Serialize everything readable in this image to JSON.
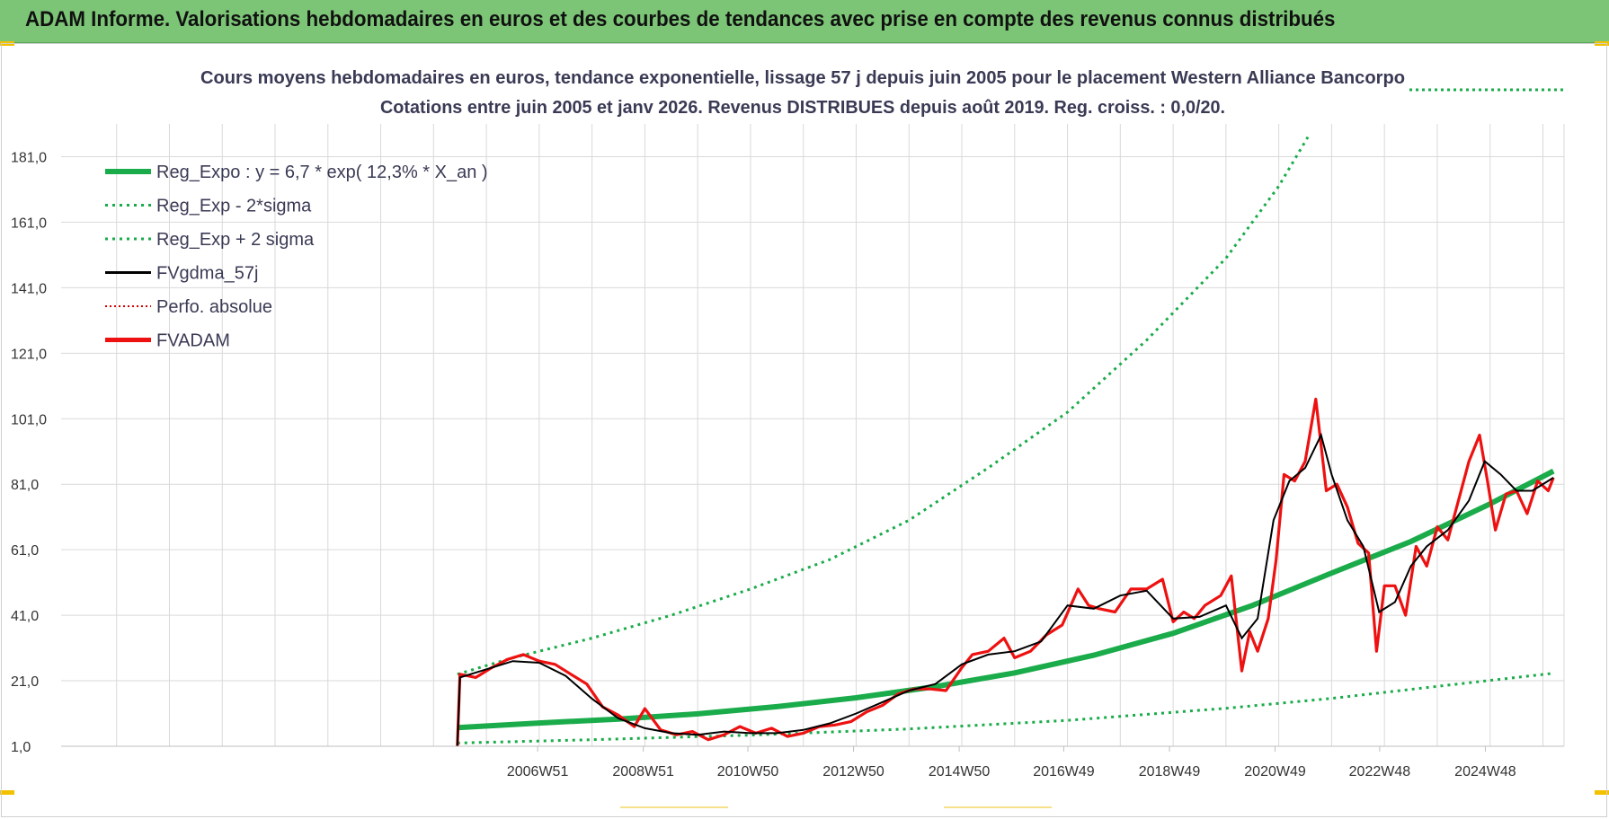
{
  "header": {
    "title": "ADAM Informe. Valorisations hebdomadaires en euros et des courbes de tendances avec prise en compte des revenus connus distribués"
  },
  "colors": {
    "header_bg": "#7cc576",
    "reg_expo": "#1aab4a",
    "sigma_bands": "#1aab4a",
    "fvgdma": "#000000",
    "perfo": "#d40000",
    "fvadam": "#ee1111",
    "grid": "#d9d9d9",
    "text": "#3a3a55"
  },
  "chart_data": {
    "type": "line",
    "title_line1": "Cours moyens hebdomadaires en euros, tendance exponentielle, lissage 57 j depuis juin 2005 pour le placement Western Alliance Bancorpo",
    "title_line2": "Cotations entre juin 2005 et janv 2026.  Revenus DISTRIBUES depuis août 2019.  Reg. croiss. : 0,0/20.",
    "ylim": [
      1,
      191
    ],
    "xlim": [
      1997.95,
      2026.4
    ],
    "y_ticks": [
      "1,0",
      "21,0",
      "41,0",
      "61,0",
      "81,0",
      "101,0",
      "121,0",
      "141,0",
      "161,0",
      "181,0"
    ],
    "x_ticks": [
      {
        "label": "2006W51",
        "x": 2006.97
      },
      {
        "label": "2008W51",
        "x": 2008.97
      },
      {
        "label": "2010W50",
        "x": 2010.95
      },
      {
        "label": "2012W50",
        "x": 2012.95
      },
      {
        "label": "2014W50",
        "x": 2014.95
      },
      {
        "label": "2016W49",
        "x": 2016.93
      },
      {
        "label": "2018W49",
        "x": 2018.93
      },
      {
        "label": "2020W49",
        "x": 2020.93
      },
      {
        "label": "2022W48",
        "x": 2022.91
      },
      {
        "label": "2024W48",
        "x": 2024.91
      }
    ],
    "legend": [
      {
        "label": "Reg_Expo : y = 6,7 * exp( 12,3% *  X_an )",
        "style": "thick"
      },
      {
        "label": "Reg_Exp - 2*sigma",
        "style": "dotted-green"
      },
      {
        "label": "Reg_Exp + 2 sigma",
        "style": "dotted-green"
      },
      {
        "label": "FVgdma_57j",
        "style": "black"
      },
      {
        "label": "Perfo. absolue",
        "style": "dotted-red"
      },
      {
        "label": "FVADAM",
        "style": "red"
      }
    ],
    "series": [
      {
        "name": "Reg_Expo",
        "x": [
          2005.45,
          2007,
          2008.5,
          2010,
          2011.5,
          2013,
          2014.5,
          2016,
          2017.5,
          2019,
          2020.5,
          2022,
          2023.5,
          2025,
          2026.2
        ],
        "values": [
          6.7,
          8.1,
          9.3,
          10.9,
          13.1,
          15.8,
          19.2,
          23.4,
          28.8,
          35.5,
          44.0,
          53.9,
          63.5,
          75.0,
          85.0
        ]
      },
      {
        "name": "Reg_Exp - 2*sigma",
        "x": [
          2005.45,
          2008,
          2011,
          2014,
          2017,
          2020,
          2022,
          2024,
          2026.2
        ],
        "values": [
          2.0,
          3.0,
          4.4,
          6.3,
          8.9,
          12.6,
          15.6,
          19.3,
          23.3
        ]
      },
      {
        "name": "Reg_Exp + 2 sigma",
        "x": [
          2005.45,
          2006.5,
          2008,
          2009.5,
          2011,
          2012.5,
          2014,
          2015.5,
          2017,
          2018.5,
          2020,
          2021,
          2021.55
        ],
        "values": [
          23.0,
          28.0,
          34.0,
          41.0,
          49.0,
          58.0,
          70.0,
          86.0,
          103.0,
          125.0,
          150.0,
          172.0,
          187.0
        ]
      },
      {
        "name": "FVgdma_57j",
        "x": [
          2005.45,
          2005.5,
          2006,
          2006.5,
          2007,
          2007.5,
          2008,
          2008.5,
          2009,
          2009.5,
          2010,
          2010.5,
          2011,
          2011.5,
          2012,
          2012.5,
          2013,
          2013.5,
          2014,
          2014.5,
          2015,
          2015.5,
          2016,
          2016.5,
          2017,
          2017.5,
          2018,
          2018.5,
          2019,
          2019.5,
          2020,
          2020.3,
          2020.6,
          2020.9,
          2021.2,
          2021.5,
          2021.8,
          2022,
          2022.3,
          2022.6,
          2022.9,
          2023.2,
          2023.5,
          2023.8,
          2024.2,
          2024.6,
          2024.9,
          2025.2,
          2025.5,
          2025.8,
          2026.2
        ],
        "values": [
          1.0,
          22.0,
          24.5,
          27.0,
          26.5,
          22.5,
          15.5,
          9.5,
          6.5,
          5.0,
          4.5,
          5.5,
          5.0,
          5.0,
          6.0,
          8.0,
          11.0,
          14.5,
          18.0,
          20.0,
          26.0,
          29.0,
          30.0,
          33.0,
          44.0,
          43.0,
          47.0,
          48.5,
          40.0,
          40.5,
          44.0,
          34.0,
          40.0,
          70.0,
          82.0,
          86.0,
          96.0,
          84.0,
          70.0,
          62.0,
          42.0,
          45.0,
          56.0,
          62.0,
          67.0,
          76.0,
          88.0,
          84.0,
          79.0,
          79.0,
          83.0
        ]
      },
      {
        "name": "FVADAM",
        "x": [
          2005.45,
          2005.5,
          2005.8,
          2006.1,
          2006.4,
          2006.7,
          2007,
          2007.3,
          2007.6,
          2007.9,
          2008.2,
          2008.5,
          2008.8,
          2009,
          2009.3,
          2009.6,
          2009.9,
          2010.2,
          2010.5,
          2010.8,
          2011.1,
          2011.4,
          2011.7,
          2012,
          2012.3,
          2012.6,
          2012.9,
          2013.2,
          2013.5,
          2013.8,
          2014.1,
          2014.4,
          2014.7,
          2015,
          2015.2,
          2015.5,
          2015.8,
          2016,
          2016.3,
          2016.6,
          2016.9,
          2017.2,
          2017.4,
          2017.6,
          2017.9,
          2018.2,
          2018.5,
          2018.8,
          2019,
          2019.2,
          2019.4,
          2019.6,
          2019.9,
          2020.1,
          2020.3,
          2020.45,
          2020.6,
          2020.8,
          2020.95,
          2021.1,
          2021.3,
          2021.5,
          2021.7,
          2021.9,
          2022.1,
          2022.3,
          2022.5,
          2022.7,
          2022.85,
          2023.0,
          2023.2,
          2023.4,
          2023.6,
          2023.8,
          2024.0,
          2024.2,
          2024.4,
          2024.6,
          2024.8,
          2024.95,
          2025.1,
          2025.3,
          2025.5,
          2025.7,
          2025.9,
          2026.1,
          2026.2
        ],
        "values": [
          1.0,
          23.0,
          22.0,
          25.0,
          27.5,
          29.0,
          27.0,
          26.0,
          23.0,
          20.0,
          13.0,
          10.5,
          7.0,
          12.5,
          6.0,
          4.5,
          5.5,
          3.0,
          4.5,
          7.0,
          5.0,
          6.5,
          4.0,
          5.0,
          7.0,
          7.5,
          8.5,
          11.5,
          13.5,
          17.0,
          18.5,
          18.5,
          18.0,
          25.0,
          29.0,
          30.0,
          34.0,
          28.0,
          30.0,
          35.0,
          38.0,
          49.0,
          44.0,
          43.0,
          42.0,
          49.0,
          49.0,
          52.0,
          39.0,
          42.0,
          40.0,
          44.0,
          47.0,
          53.0,
          24.0,
          36.0,
          30.0,
          40.0,
          58.0,
          84.0,
          82.0,
          88.0,
          107.0,
          79.0,
          81.0,
          74.0,
          63.0,
          60.0,
          30.0,
          50.0,
          50.0,
          41.0,
          62.0,
          56.0,
          68.0,
          64.0,
          76.0,
          88.0,
          96.0,
          82.0,
          67.0,
          78.0,
          79.0,
          72.0,
          82.0,
          79.0,
          83.0
        ]
      }
    ]
  }
}
